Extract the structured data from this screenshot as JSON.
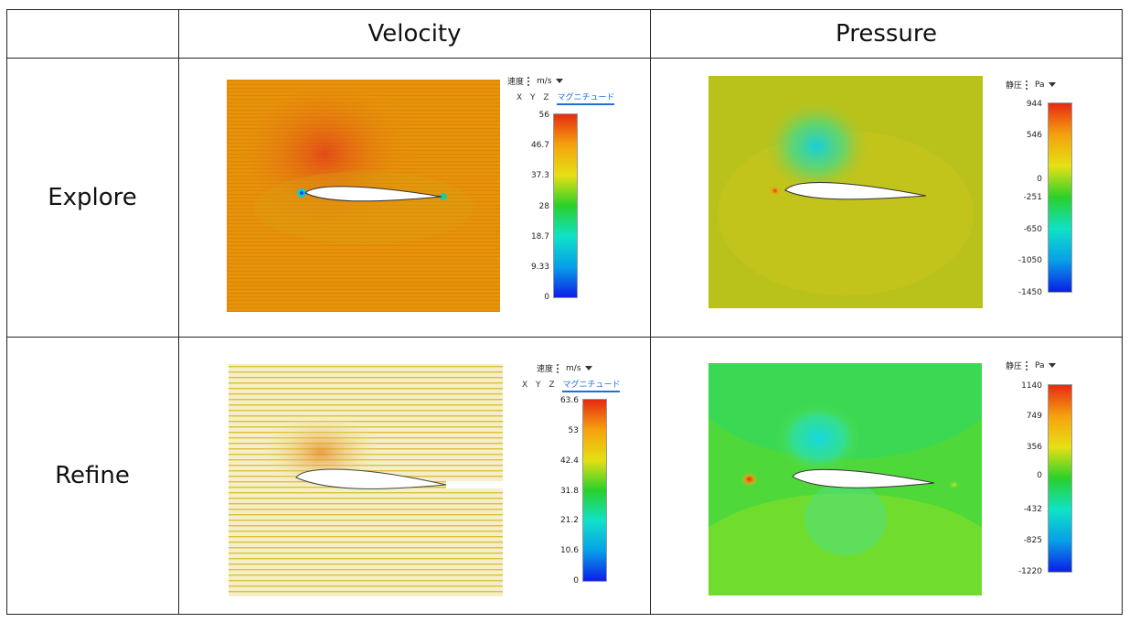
{
  "table": {
    "columns": [
      "",
      "Velocity",
      "Pressure"
    ],
    "rows": [
      "Explore",
      "Refine"
    ]
  },
  "panels": {
    "explore_velocity": {
      "quantity": "速度",
      "unit": "m/s",
      "axes": [
        "X",
        "Y",
        "Z"
      ],
      "active_axis": "マグニチュード",
      "ticks": [
        "56",
        "46.7",
        "37.3",
        "28",
        "18.7",
        "9.33",
        "0"
      ]
    },
    "explore_pressure": {
      "quantity": "静圧",
      "unit": "Pa",
      "ticks": [
        "944",
        "546",
        "0",
        "-251",
        "-650",
        "-1050",
        "-1450"
      ]
    },
    "refine_velocity": {
      "quantity": "速度",
      "unit": "m/s",
      "axes": [
        "X",
        "Y",
        "Z"
      ],
      "active_axis": "マグニチュード",
      "ticks": [
        "63.6",
        "53",
        "42.4",
        "31.8",
        "21.2",
        "10.6",
        "0"
      ]
    },
    "refine_pressure": {
      "quantity": "静圧",
      "unit": "Pa",
      "ticks": [
        "1140",
        "749",
        "356",
        "0",
        "-432",
        "-825",
        "-1220"
      ]
    }
  },
  "colors": {
    "rainbow": [
      "#0b1fe6",
      "#08a0e8",
      "#10e2c7",
      "#2ad02a",
      "#e6e014",
      "#f5a20e",
      "#e62b12"
    ],
    "explore_velocity_bg": "#e8920a",
    "explore_pressure_bg": "#b9c21b",
    "refine_velocity_bg": "#f0e9a2",
    "refine_pressure_bg": "#5fdc2f"
  }
}
